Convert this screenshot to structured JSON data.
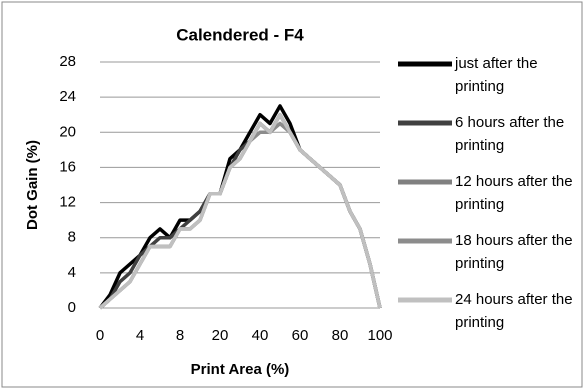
{
  "chart_data": {
    "type": "line",
    "title": "Calendered - F4",
    "x_label": "Print Area (%)",
    "y_label": "Dot Gain (%)",
    "categories": [
      0,
      null,
      null,
      null,
      4,
      null,
      null,
      null,
      8,
      null,
      null,
      null,
      20,
      null,
      null,
      null,
      40,
      null,
      null,
      null,
      60,
      null,
      null,
      null,
      80,
      null,
      null,
      null,
      100
    ],
    "ylim": [
      0,
      28
    ],
    "yticks": [
      0,
      4,
      8,
      12,
      16,
      20,
      24,
      28
    ],
    "grid": true,
    "series": [
      {
        "name": "just after the printing",
        "color": "#000000",
        "values": [
          0,
          1.5,
          4,
          5,
          6,
          8,
          9,
          8,
          10,
          10,
          11,
          13,
          13,
          17,
          18,
          20,
          22,
          21,
          23,
          21,
          18,
          17,
          16,
          15,
          14,
          11,
          9,
          5,
          0
        ]
      },
      {
        "name": "6 hours after the printing",
        "color": "#404040",
        "values": [
          0,
          1,
          3,
          4,
          6,
          7,
          8,
          8,
          9,
          10,
          11,
          13,
          13,
          16,
          18,
          19,
          21,
          20,
          22,
          20,
          18,
          17,
          16,
          15,
          14,
          11,
          9,
          5,
          0
        ]
      },
      {
        "name": "12 hours after the printing",
        "color": "#808080",
        "values": [
          0,
          1,
          2,
          3,
          5,
          7,
          7,
          7,
          9,
          9,
          10,
          13,
          13,
          16,
          17,
          19,
          21,
          20,
          22,
          20,
          18,
          17,
          16,
          15,
          14,
          11,
          9,
          5,
          0
        ]
      },
      {
        "name": "18 hours after the printing",
        "color": "#8c8c8c",
        "values": [
          0,
          1,
          2,
          3,
          5,
          7,
          7,
          7,
          9,
          9,
          10,
          13,
          13,
          16,
          17,
          19,
          20,
          20,
          21,
          20,
          18,
          17,
          16,
          15,
          14,
          11,
          9,
          5,
          0
        ]
      },
      {
        "name": "24 hours after the printing",
        "color": "#c0c0c0",
        "values": [
          0,
          1,
          2,
          3,
          5,
          7,
          7,
          7,
          9,
          9,
          10,
          13,
          13,
          16,
          17,
          19,
          21,
          20,
          22,
          20,
          18,
          17,
          16,
          15,
          14,
          11,
          9,
          5,
          0
        ]
      }
    ]
  }
}
